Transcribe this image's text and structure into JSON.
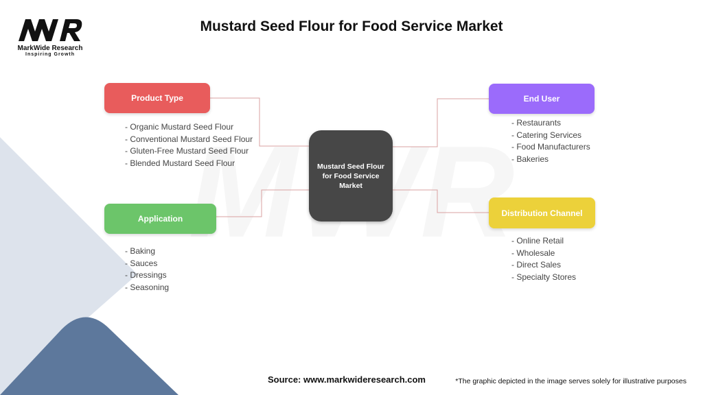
{
  "title": "Mustard Seed Flour for Food Service Market",
  "logo": {
    "mark": "MWR",
    "brand": "MarkWide Research",
    "tagline": "Inspiring Growth"
  },
  "center": {
    "label": "Mustard Seed Flour for Food Service Market"
  },
  "categories": [
    {
      "label": "Product Type",
      "color": "#e85c5c",
      "items": [
        "- Organic Mustard Seed Flour",
        "- Conventional Mustard Seed Flour",
        "- Gluten-Free Mustard Seed Flour",
        "- Blended Mustard Seed Flour"
      ]
    },
    {
      "label": "Application",
      "color": "#6cc56a",
      "items": [
        "- Baking",
        "- Sauces",
        "- Dressings",
        "- Seasoning"
      ]
    },
    {
      "label": "End User",
      "color": "#9b6bfb",
      "items": [
        "- Restaurants",
        "- Catering Services",
        "- Food Manufacturers",
        "- Bakeries"
      ]
    },
    {
      "label": "Distribution Channel",
      "color": "#ecd13a",
      "items": [
        "- Online Retail",
        "- Wholesale",
        "- Direct Sales",
        "- Specialty Stores"
      ]
    }
  ],
  "connector_color": "#d9a0a0",
  "footer": {
    "source": "Source: www.markwideresearch.com",
    "disclaimer": "*The graphic depicted in the image serves solely for illustrative purposes"
  }
}
